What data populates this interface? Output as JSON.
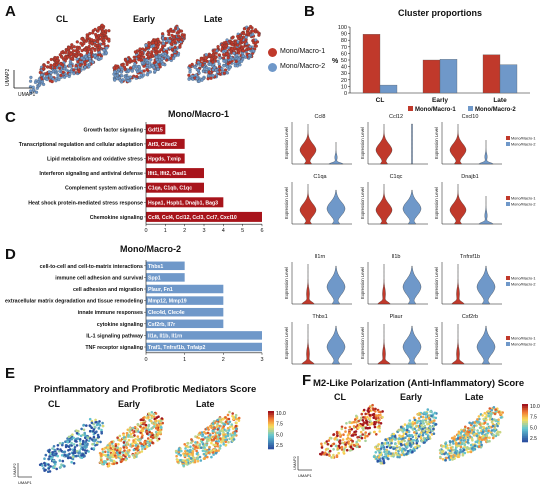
{
  "panels": {
    "A": "A",
    "B": "B",
    "C": "C",
    "D": "D",
    "E": "E",
    "F": "F"
  },
  "panelA": {
    "conditions": [
      "CL",
      "Early",
      "Late"
    ],
    "axis_x": "UMAP1",
    "axis_y": "UMAP2",
    "legend": [
      {
        "label": "Mono/Macro-1",
        "color": "#c0392b"
      },
      {
        "label": "Mono/Macro-2",
        "color": "#6f98c9"
      }
    ]
  },
  "colors": {
    "macro1": "#c0392b",
    "macro2": "#6f98c9",
    "bar1": "#a8141b",
    "bar2": "#6f98c9"
  },
  "chart_data": [
    {
      "type": "bar",
      "title": "Cluster proportions",
      "ylabel": "%",
      "categories": [
        "CL",
        "Early",
        "Late"
      ],
      "ylim": [
        0,
        100
      ],
      "yticks": [
        0,
        10,
        20,
        30,
        40,
        50,
        60,
        70,
        80,
        90,
        100
      ],
      "series": [
        {
          "name": "Mono/Macro-1",
          "values": [
            89,
            50,
            58
          ],
          "color": "#c0392b"
        },
        {
          "name": "Mono/Macro-2",
          "values": [
            12,
            51,
            43
          ],
          "color": "#6f98c9"
        }
      ],
      "legend_position": "bottom"
    },
    {
      "type": "bar",
      "orientation": "horizontal",
      "title": "Mono/Macro-1",
      "categories": [
        "Growth factor signaling",
        "Transcriptional regulation and cellular adaptation",
        "Lipid metabolism and oxidative stress",
        "Interferon signaling and antiviral defense",
        "Complement system activation",
        "Heat shock protein-mediated stress response",
        "Chemokine signaling"
      ],
      "values": [
        1,
        2,
        2,
        3,
        3,
        4,
        6
      ],
      "genes": [
        "Gdf15",
        "Atf3, Cited2",
        "Hpgds, Txnip",
        "Ifit1, Ifit2, Oasl1",
        "C1qa, C1qb, C1qc",
        "Hspa1, Hspb1, Dnajb1, Bag3",
        "Ccl8, Ccl4, Ccl12, Ccl3, Ccl7, Cxcl10"
      ],
      "xlim": [
        0,
        6
      ],
      "xticks": [
        0,
        1,
        2,
        3,
        4,
        5,
        6
      ],
      "color": "#a8141b"
    },
    {
      "type": "bar",
      "orientation": "horizontal",
      "title": "Mono/Macro-2",
      "categories": [
        "cell-to-cell and cell-to-matrix interactions",
        "immune cell adhesion and survival",
        "cell adhesion and migration",
        "extracellular matrix degradation and tissue remodeling",
        "innate immune responses",
        "cytokine signaling",
        "IL-1 signaling pathway",
        "TNF receptor signaling"
      ],
      "values": [
        1,
        1,
        2,
        2,
        2,
        2,
        3,
        3
      ],
      "genes": [
        "Thbs1",
        "Spp1",
        "Plaur, Fn1",
        "Mmp12, Mmp19",
        "Clec4d, Clec4e",
        "Csf2rb, Il7r",
        "Il1a, Il1b, Il1rn",
        "Traf1, Tnfrsf1b, Tnfaip2"
      ],
      "xlim": [
        0,
        3
      ],
      "xticks": [
        0,
        1,
        2,
        3
      ],
      "color": "#6f98c9"
    }
  ],
  "violinsC": {
    "ylabel": "Expression Level",
    "genes": [
      "Ccl8",
      "Ccl12",
      "Cxcl10",
      "C1qa",
      "C1qc",
      "Dnajb1"
    ],
    "legend": [
      "Mono/Macro-1",
      "Mono/Macro-2"
    ]
  },
  "violinsD": {
    "ylabel": "Expression Level",
    "genes": [
      "Il1rn",
      "Il1b",
      "Tnfrsf1b",
      "Thbs1",
      "Plaur",
      "Csf2rb"
    ],
    "legend": [
      "Mono/Macro-1",
      "Mono/Macro-2"
    ]
  },
  "panelE": {
    "title": "Proinflammatory and Profibrotic Mediators Score",
    "conditions": [
      "CL",
      "Early",
      "Late"
    ],
    "colorbar_ticks": [
      "10.0",
      "7.5",
      "5.0",
      "2.5"
    ],
    "axis_x": "UMAP1",
    "axis_y": "UMAP2"
  },
  "panelF": {
    "title": "M2-Like Polarization (Anti-Inflammatory) Score",
    "conditions": [
      "CL",
      "Early",
      "Late"
    ],
    "colorbar_ticks": [
      "10.0",
      "7.5",
      "5.0",
      "2.5"
    ],
    "axis_x": "UMAP1",
    "axis_y": "UMAP2"
  }
}
